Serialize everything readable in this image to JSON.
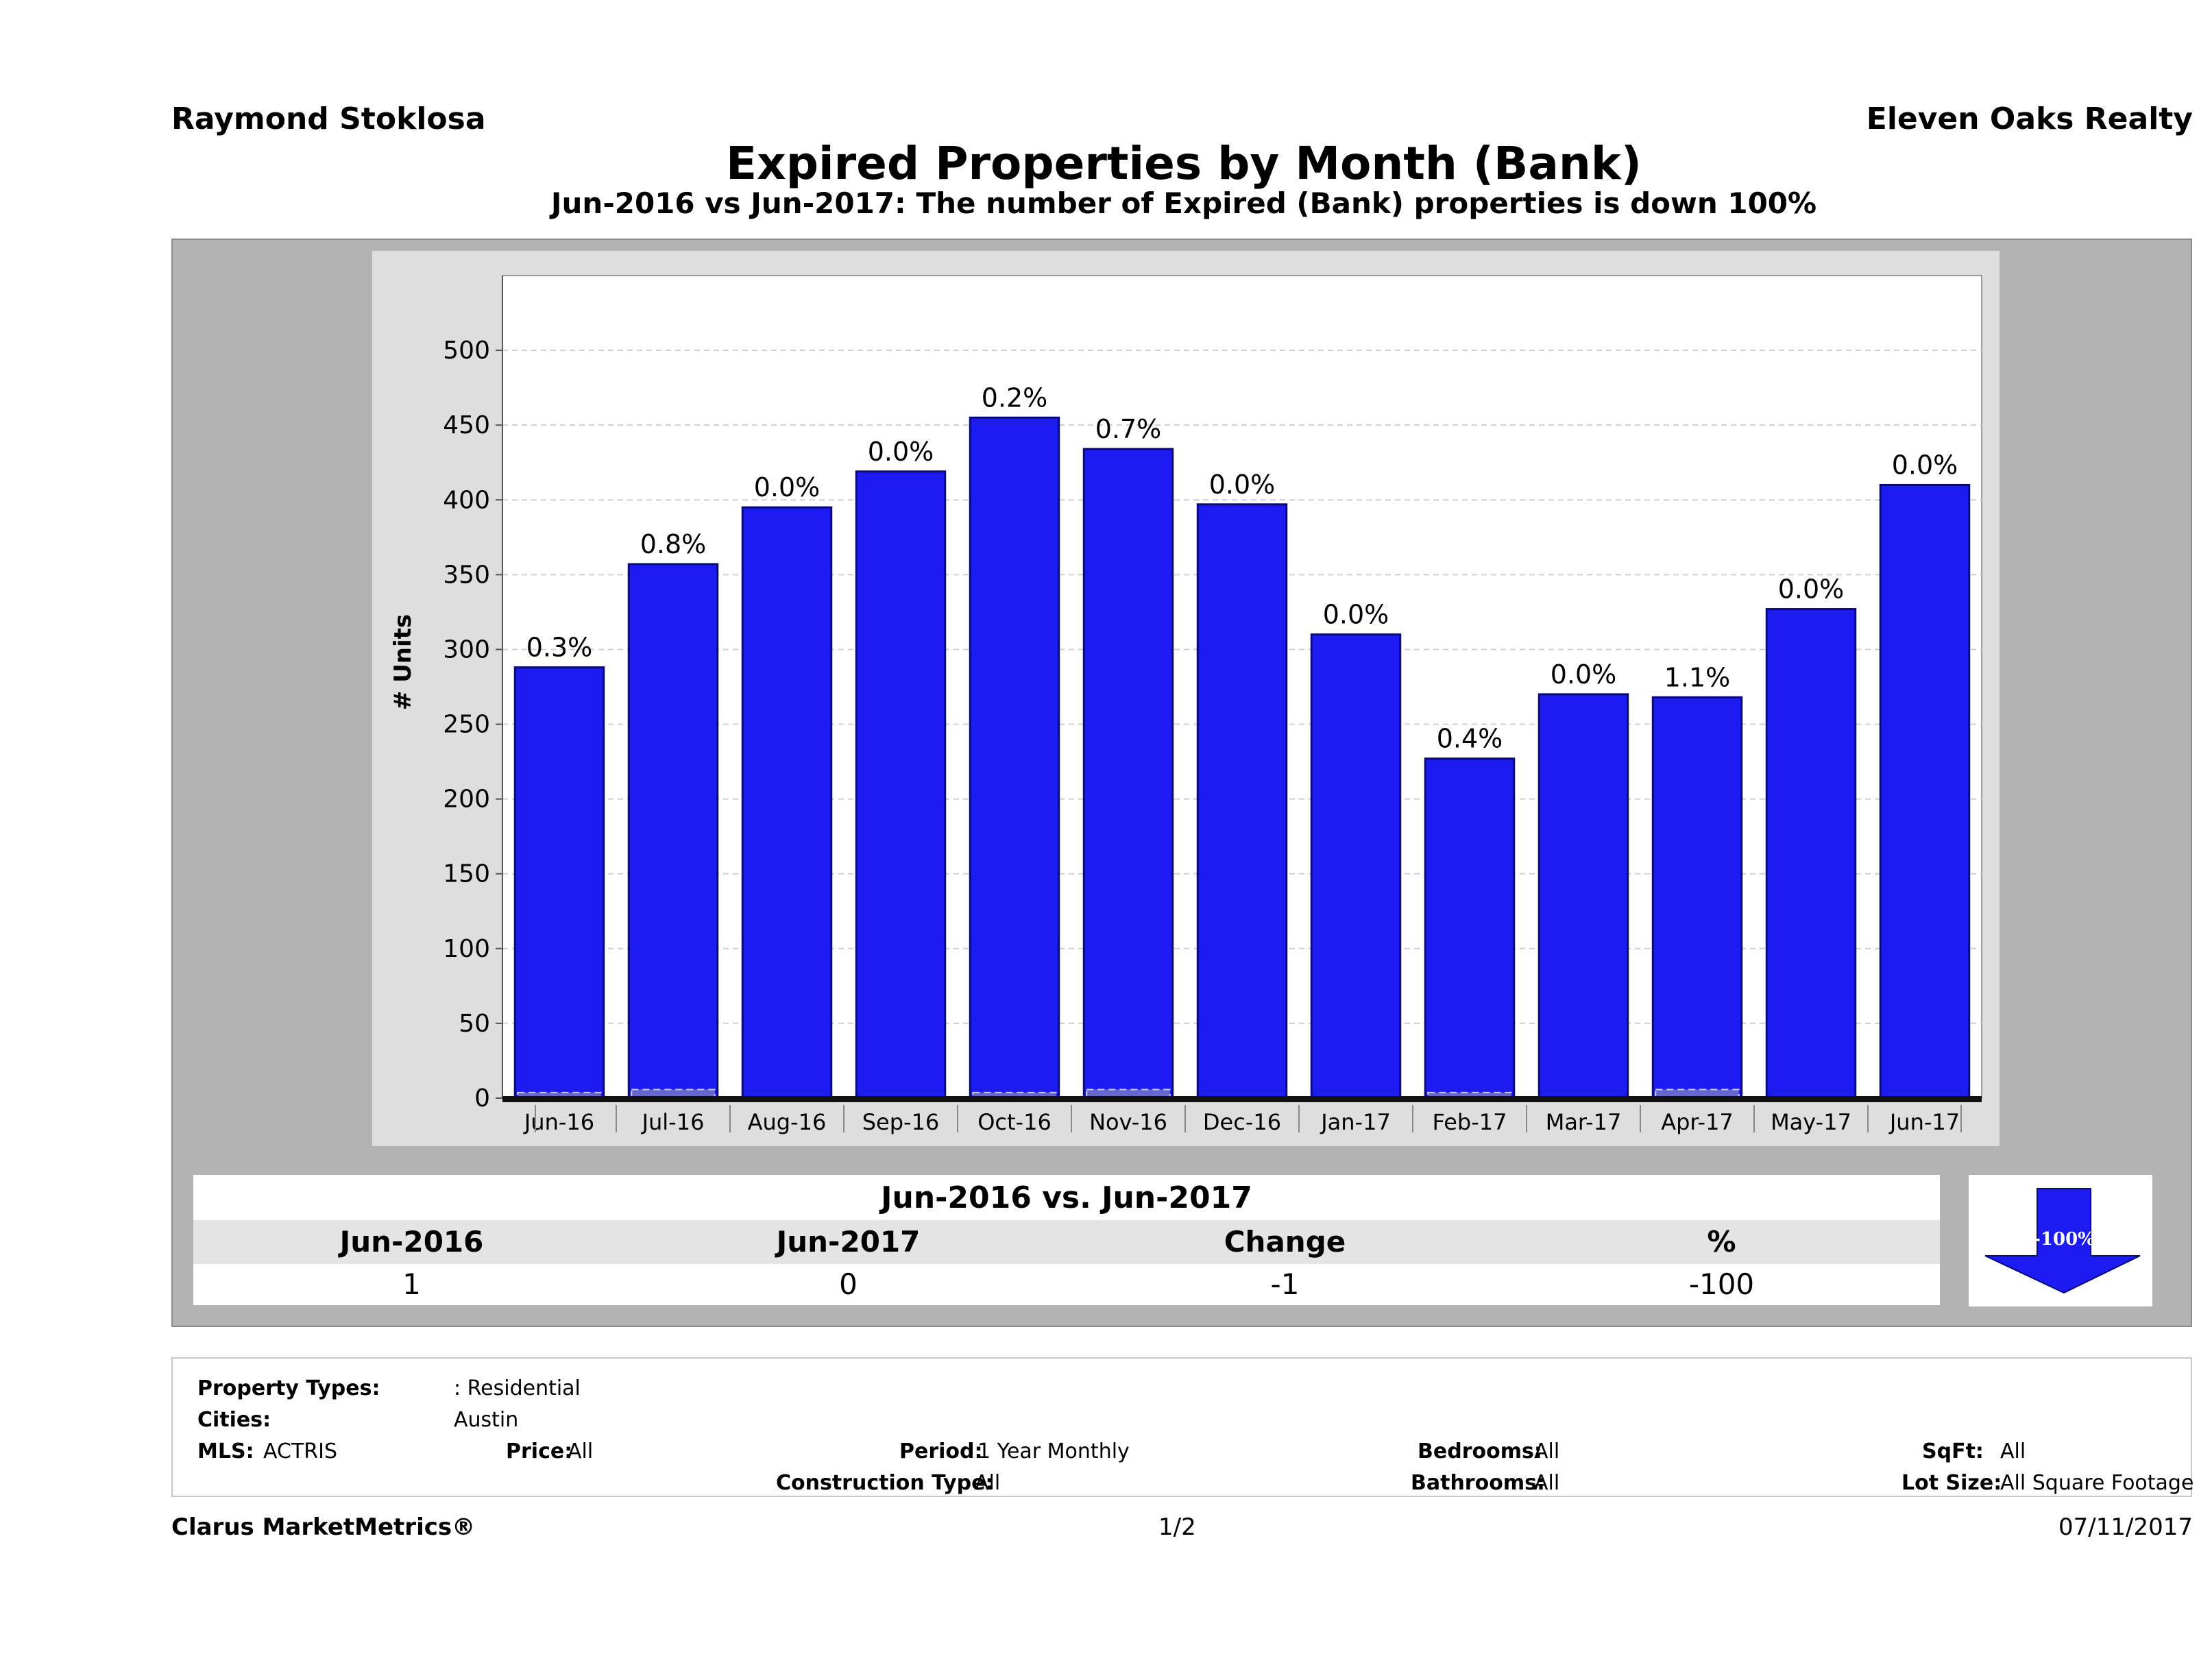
{
  "header": {
    "agent_name": "Raymond Stoklosa",
    "agency": "Eleven Oaks Realty",
    "title": "Expired Properties by Month (Bank)",
    "subtitle": "Jun-2016 vs Jun-2017: The number of Expired (Bank)  properties is down 100%"
  },
  "chart_data": {
    "type": "bar",
    "ylabel": "# Units",
    "ylim": [
      0,
      550
    ],
    "yticks": [
      0,
      50,
      100,
      150,
      200,
      250,
      300,
      350,
      400,
      450,
      500
    ],
    "grid": true,
    "categories": [
      "Jun-16",
      "Jul-16",
      "Aug-16",
      "Sep-16",
      "Oct-16",
      "Nov-16",
      "Dec-16",
      "Jan-17",
      "Feb-17",
      "Mar-17",
      "Apr-17",
      "May-17",
      "Jun-17"
    ],
    "series": [
      {
        "values": [
          288,
          357,
          395,
          419,
          455,
          434,
          397,
          310,
          227,
          270,
          268,
          327,
          410
        ]
      },
      {
        "values": [
          1,
          3,
          0,
          0,
          1,
          3,
          0,
          0,
          1,
          0,
          3,
          0,
          0
        ]
      }
    ],
    "data_labels": [
      "0.3%",
      "0.8%",
      "0.0%",
      "0.0%",
      "0.2%",
      "0.7%",
      "0.0%",
      "0.0%",
      "0.4%",
      "0.0%",
      "1.1%",
      "0.0%",
      "0.0%"
    ],
    "colors": {
      "bar": "#1b1bf2",
      "bar_edge": "#0a0a7a",
      "bank": "#6666cc"
    }
  },
  "comparison": {
    "title": "Jun-2016 vs. Jun-2017",
    "headers": [
      "Jun-2016",
      "Jun-2017",
      "Change",
      "%"
    ],
    "values": [
      "1",
      "0",
      "-1",
      "-100"
    ],
    "badge": "-100%",
    "badge_icon": "down-arrow-icon"
  },
  "filters": {
    "property_types_label": "Property Types:",
    "property_types": ": Residential",
    "cities_label": "Cities:",
    "cities": "Austin",
    "mls_label": "MLS:",
    "mls": "ACTRIS",
    "price_label": "Price:",
    "price": "All",
    "period_label": "Period:",
    "period": "1 Year Monthly",
    "construction_label": "Construction Type:",
    "construction": "All",
    "bedrooms_label": "Bedrooms:",
    "bedrooms": "All",
    "bathrooms_label": "Bathrooms:",
    "bathrooms": "All",
    "sqft_label": "SqFt:",
    "sqft": "All",
    "lotsize_label": "Lot Size:",
    "lotsize": "All Square Footage"
  },
  "footer": {
    "brand": "Clarus MarketMetrics®",
    "page": "1/2",
    "date": "07/11/2017"
  }
}
